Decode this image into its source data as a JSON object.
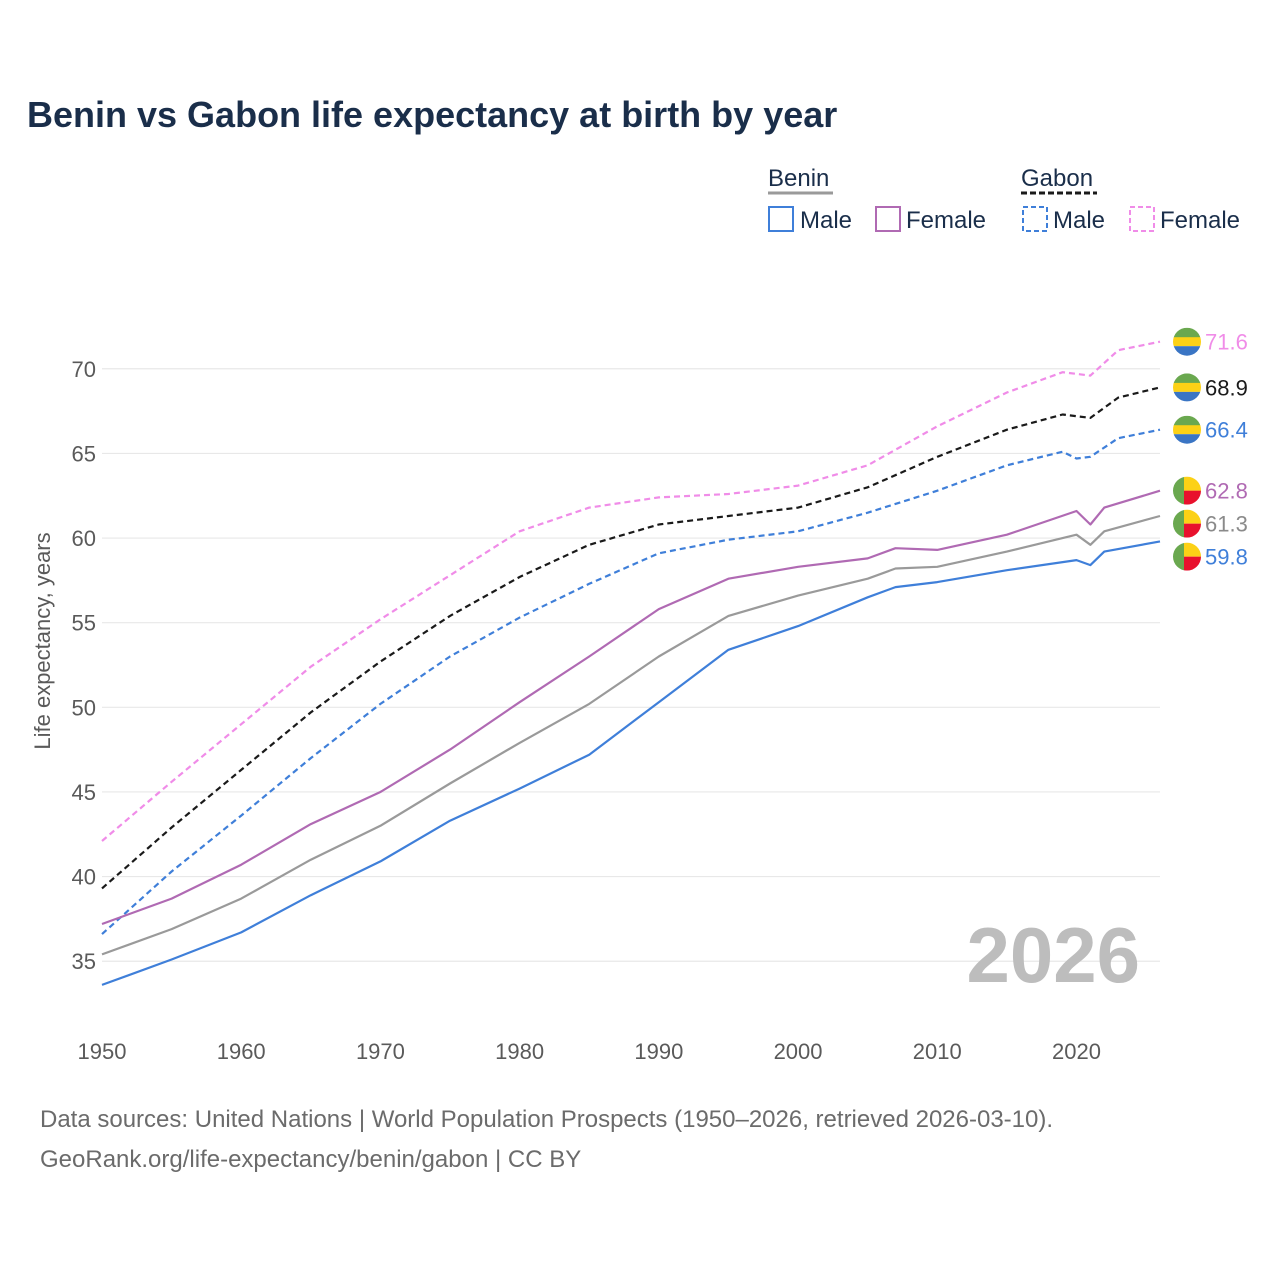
{
  "chart_data": {
    "type": "line",
    "title": "Benin vs Gabon life expectancy at birth by year",
    "xlabel": "",
    "ylabel": "Life expectancy, years",
    "xlim": [
      1950,
      2026
    ],
    "ylim": [
      32,
      73
    ],
    "x_ticks": [
      1950,
      1960,
      1970,
      1980,
      1990,
      2000,
      2010,
      2020
    ],
    "y_ticks": [
      35,
      40,
      45,
      50,
      55,
      60,
      65,
      70
    ],
    "grid": true,
    "year_watermark": "2026",
    "legend": {
      "placement": "top-right",
      "groups": [
        {
          "name": "Benin",
          "style": "solid",
          "items": [
            "Male",
            "Female"
          ]
        },
        {
          "name": "Gabon",
          "style": "dashed",
          "items": [
            "Male",
            "Female"
          ]
        }
      ]
    },
    "series": [
      {
        "name": "Gabon Female",
        "country": "Gabon",
        "group": "Female",
        "color": "#f08ce8",
        "dash": true,
        "points": [
          [
            1950,
            42.1
          ],
          [
            1955,
            45.6
          ],
          [
            1960,
            49.0
          ],
          [
            1965,
            52.4
          ],
          [
            1970,
            55.2
          ],
          [
            1975,
            57.8
          ],
          [
            1980,
            60.4
          ],
          [
            1985,
            61.8
          ],
          [
            1990,
            62.4
          ],
          [
            1995,
            62.6
          ],
          [
            2000,
            63.1
          ],
          [
            2005,
            64.3
          ],
          [
            2010,
            66.6
          ],
          [
            2015,
            68.6
          ],
          [
            2019,
            69.8
          ],
          [
            2021,
            69.6
          ],
          [
            2023,
            71.1
          ],
          [
            2026,
            71.6
          ]
        ],
        "end_label": "71.6"
      },
      {
        "name": "Gabon Both",
        "country": "Gabon",
        "group": "Both",
        "color": "#1a1a1a",
        "dash": true,
        "points": [
          [
            1950,
            39.3
          ],
          [
            1955,
            42.9
          ],
          [
            1960,
            46.3
          ],
          [
            1965,
            49.7
          ],
          [
            1970,
            52.7
          ],
          [
            1975,
            55.4
          ],
          [
            1980,
            57.7
          ],
          [
            1985,
            59.6
          ],
          [
            1990,
            60.8
          ],
          [
            1995,
            61.3
          ],
          [
            2000,
            61.8
          ],
          [
            2005,
            63.0
          ],
          [
            2010,
            64.8
          ],
          [
            2015,
            66.4
          ],
          [
            2019,
            67.3
          ],
          [
            2021,
            67.1
          ],
          [
            2023,
            68.3
          ],
          [
            2026,
            68.9
          ]
        ],
        "end_label": "68.9"
      },
      {
        "name": "Gabon Male",
        "country": "Gabon",
        "group": "Male",
        "color": "#3f7fd9",
        "dash": true,
        "points": [
          [
            1950,
            36.6
          ],
          [
            1955,
            40.3
          ],
          [
            1960,
            43.6
          ],
          [
            1965,
            47.0
          ],
          [
            1970,
            50.2
          ],
          [
            1975,
            53.0
          ],
          [
            1980,
            55.3
          ],
          [
            1985,
            57.3
          ],
          [
            1990,
            59.1
          ],
          [
            1995,
            59.9
          ],
          [
            2000,
            60.4
          ],
          [
            2005,
            61.5
          ],
          [
            2010,
            62.8
          ],
          [
            2015,
            64.3
          ],
          [
            2019,
            65.1
          ],
          [
            2020,
            64.7
          ],
          [
            2021,
            64.8
          ],
          [
            2023,
            65.9
          ],
          [
            2026,
            66.4
          ]
        ],
        "end_label": "66.4"
      },
      {
        "name": "Benin Female",
        "country": "Benin",
        "group": "Female",
        "color": "#b06ab3",
        "dash": false,
        "points": [
          [
            1950,
            37.2
          ],
          [
            1955,
            38.7
          ],
          [
            1960,
            40.7
          ],
          [
            1965,
            43.1
          ],
          [
            1970,
            45.0
          ],
          [
            1975,
            47.5
          ],
          [
            1980,
            50.3
          ],
          [
            1985,
            53.0
          ],
          [
            1990,
            55.8
          ],
          [
            1995,
            57.6
          ],
          [
            2000,
            58.3
          ],
          [
            2005,
            58.8
          ],
          [
            2007,
            59.4
          ],
          [
            2010,
            59.3
          ],
          [
            2015,
            60.2
          ],
          [
            2020,
            61.6
          ],
          [
            2021,
            60.8
          ],
          [
            2022,
            61.8
          ],
          [
            2026,
            62.8
          ]
        ],
        "end_label": "62.8"
      },
      {
        "name": "Benin Both",
        "country": "Benin",
        "group": "Both",
        "color": "#9a9a9a",
        "dash": false,
        "points": [
          [
            1950,
            35.4
          ],
          [
            1955,
            36.9
          ],
          [
            1960,
            38.7
          ],
          [
            1965,
            41.0
          ],
          [
            1970,
            43.0
          ],
          [
            1975,
            45.5
          ],
          [
            1980,
            47.9
          ],
          [
            1985,
            50.2
          ],
          [
            1990,
            53.0
          ],
          [
            1995,
            55.4
          ],
          [
            2000,
            56.6
          ],
          [
            2005,
            57.6
          ],
          [
            2007,
            58.2
          ],
          [
            2010,
            58.3
          ],
          [
            2015,
            59.2
          ],
          [
            2020,
            60.2
          ],
          [
            2021,
            59.6
          ],
          [
            2022,
            60.4
          ],
          [
            2026,
            61.3
          ]
        ],
        "end_label": "61.3"
      },
      {
        "name": "Benin Male",
        "country": "Benin",
        "group": "Male",
        "color": "#3f7fd9",
        "dash": false,
        "points": [
          [
            1950,
            33.6
          ],
          [
            1955,
            35.1
          ],
          [
            1960,
            36.7
          ],
          [
            1965,
            38.9
          ],
          [
            1970,
            40.9
          ],
          [
            1975,
            43.3
          ],
          [
            1980,
            45.2
          ],
          [
            1985,
            47.2
          ],
          [
            1990,
            50.3
          ],
          [
            1995,
            53.4
          ],
          [
            2000,
            54.8
          ],
          [
            2005,
            56.5
          ],
          [
            2007,
            57.1
          ],
          [
            2010,
            57.4
          ],
          [
            2015,
            58.1
          ],
          [
            2020,
            58.7
          ],
          [
            2021,
            58.4
          ],
          [
            2022,
            59.2
          ],
          [
            2026,
            59.8
          ]
        ],
        "end_label": "59.8"
      }
    ]
  },
  "footer": {
    "line1": "Data sources: United Nations | World Population Prospects (1950–2026, retrieved 2026-03-10).",
    "line2": "GeoRank.org/life-expectancy/benin/gabon | CC BY"
  }
}
